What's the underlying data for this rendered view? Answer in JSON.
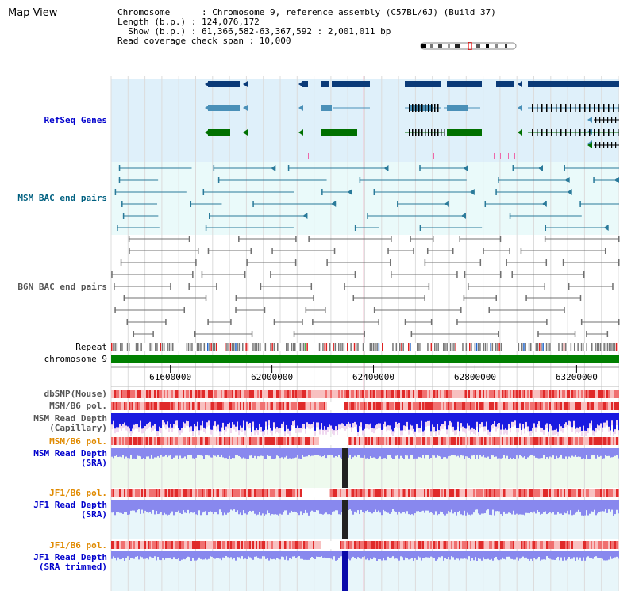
{
  "page": {
    "title": "Map View"
  },
  "info": {
    "chromosome_line": "Chromosome      : Chromosome 9, reference assembly (C57BL/6J) (Build 37)",
    "length_line": "Length (b.p.) : 124,076,172",
    "show_line": "  Show (b.p.) : 61,366,582-63,367,592 : 2,001,011 bp",
    "span_line": "Read coverage check span : 10,000"
  },
  "tracks": {
    "refseq": "RefSeq Genes",
    "msm_bac": "MSM BAC end pairs",
    "b6n_bac": "B6N BAC end pairs",
    "repeat": "Repeat",
    "chromosome": "chromosome 9",
    "dbsnp": "dbSNP(Mouse)",
    "msm_pol_1": "MSM/B6 pol.",
    "msm_depth_cap": "MSM Read Depth\n(Capillary)",
    "msm_pol_2": "MSM/B6 pol.",
    "msm_depth_sra": "MSM Read Depth\n(SRA)",
    "jf1_pol_1": "JF1/B6 pol.",
    "jf1_depth_sra": "JF1 Read Depth\n(SRA)",
    "jf1_pol_2": "JF1/B6 pol.",
    "jf1_depth_trim": "JF1 Read Depth\n(SRA trimmed)"
  },
  "ruler": {
    "ticks": [
      {
        "pos": 61600000,
        "label": "61600000"
      },
      {
        "pos": 62000000,
        "label": "62000000"
      },
      {
        "pos": 62400000,
        "label": "62400000"
      },
      {
        "pos": 62800000,
        "label": "62800000"
      },
      {
        "pos": 63200000,
        "label": "63200000"
      }
    ]
  },
  "colors": {
    "refseq_bg": "#dff0fa",
    "bac_bg": "#eafafa",
    "gene_dark": "#0a3a78",
    "gene_mid": "#4a90b8",
    "gene_green": "#007000",
    "bac_line": "#2a7a9a",
    "b6n_line": "#707070",
    "chrom_bar": "#008000",
    "depth_blue": "#1a1ae0",
    "depth_violet": "#8888ee",
    "pol_red": "#ee3333"
  }
}
